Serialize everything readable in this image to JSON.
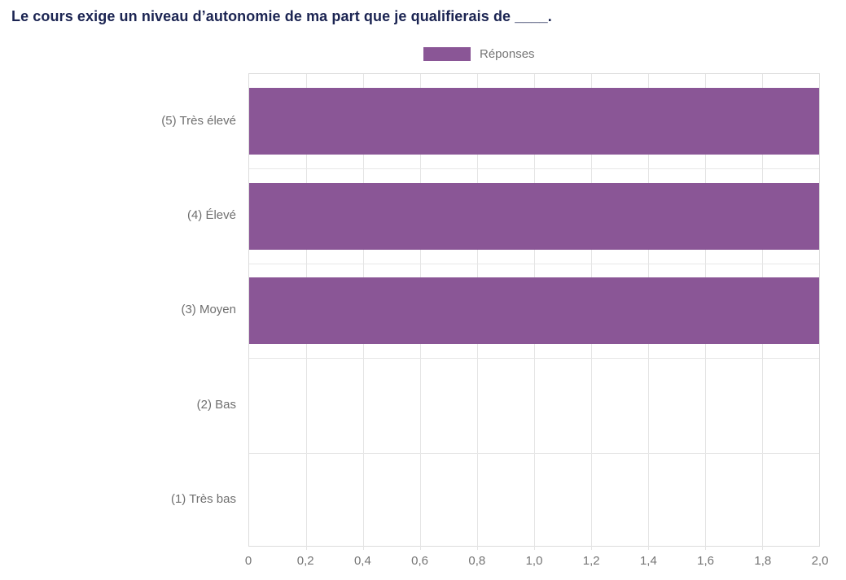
{
  "title": "Le cours exige un niveau d’autonomie de ma part que je qualifierais de ____.",
  "legend": {
    "label": "Réponses",
    "swatch_color": "#8a5696"
  },
  "chart_data": {
    "type": "bar",
    "orientation": "horizontal",
    "title": "Le cours exige un niveau d’autonomie de ma part que je qualifierais de ____.",
    "series": [
      {
        "name": "Réponses",
        "color": "#8a5696",
        "values": [
          2,
          2,
          2,
          0,
          0
        ]
      }
    ],
    "categories": [
      "(5) Très élevé",
      "(4) Élevé",
      "(3) Moyen",
      "(2) Bas",
      "(1) Très bas"
    ],
    "xlim": [
      0,
      2
    ],
    "x_tick_values": [
      0,
      0.2,
      0.4,
      0.6,
      0.8,
      1.0,
      1.2,
      1.4,
      1.6,
      1.8,
      2.0
    ],
    "x_tick_labels": [
      "0",
      "0,2",
      "0,4",
      "0,6",
      "0,8",
      "1,0",
      "1,2",
      "1,4",
      "1,6",
      "1,8",
      "2,0"
    ],
    "grid": true,
    "legend_position": "top"
  },
  "colors": {
    "title_text": "#1b2452",
    "bar": "#8a5696",
    "axis_text": "#757575",
    "category_text": "#6f6f6f",
    "gridline": "#e4e4e4",
    "plot_border": "#dcdcdc"
  }
}
